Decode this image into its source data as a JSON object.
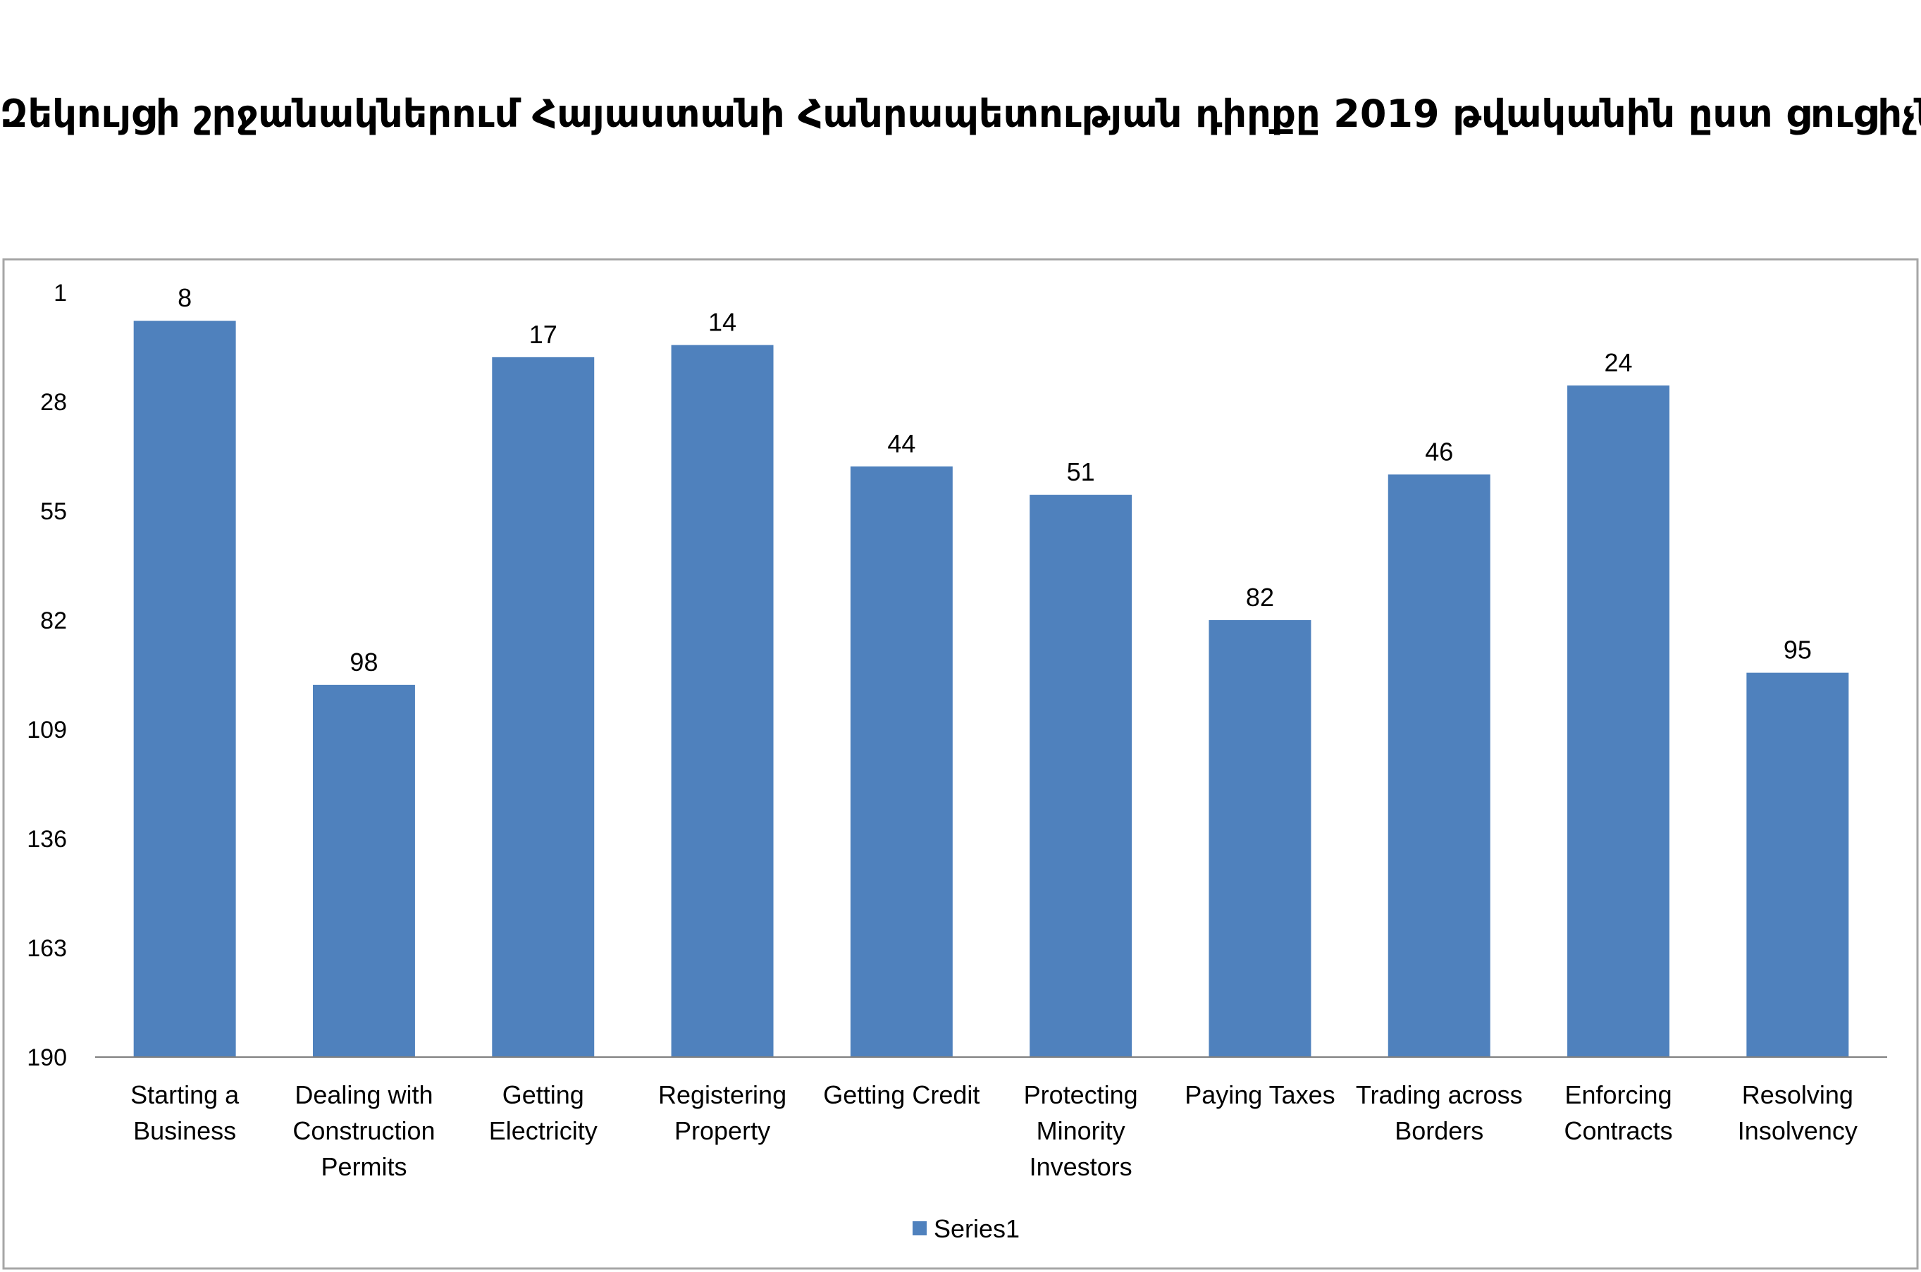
{
  "chart_data": {
    "type": "bar",
    "title": "Զեկույցի շրջանակներում Հայաստանի Հանրապետության դիրքը 2019 թվականին ըստ ցուցիչների",
    "categories": [
      [
        "Starting a",
        "Business"
      ],
      [
        "Dealing with",
        "Construction",
        "Permits"
      ],
      [
        "Getting",
        "Electricity"
      ],
      [
        "Registering",
        "Property"
      ],
      [
        "Getting Credit"
      ],
      [
        "Protecting",
        "Minority",
        "Investors"
      ],
      [
        "Paying Taxes"
      ],
      [
        "Trading across",
        "Borders"
      ],
      [
        "Enforcing",
        "Contracts"
      ],
      [
        "Resolving",
        "Insolvency"
      ]
    ],
    "series": [
      {
        "name": "Series1",
        "values": [
          8,
          98,
          17,
          14,
          44,
          51,
          82,
          46,
          24,
          95
        ],
        "color": "#4F81BD"
      }
    ],
    "y_axis": {
      "reversed": true,
      "ylim": [
        1,
        190
      ],
      "ticks": [
        1,
        28,
        55,
        82,
        109,
        136,
        163,
        190
      ]
    },
    "legend": "bottom",
    "grid": false
  }
}
